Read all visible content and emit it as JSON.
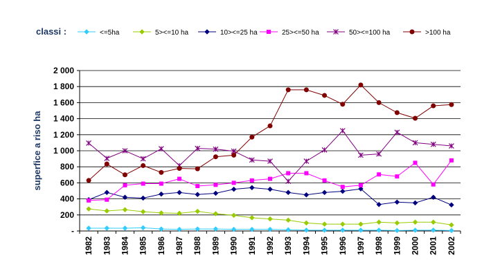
{
  "chart_data": {
    "type": "line",
    "legend_title": "classi :",
    "ylabel": "superfice a riso ha",
    "xlabel": "",
    "ylim": [
      0,
      2000
    ],
    "yticks": [
      {
        "value": 0,
        "label": "-"
      },
      {
        "value": 200,
        "label": "200"
      },
      {
        "value": 400,
        "label": "400"
      },
      {
        "value": 600,
        "label": "600"
      },
      {
        "value": 800,
        "label": "800"
      },
      {
        "value": 1000,
        "label": "1 000"
      },
      {
        "value": 1200,
        "label": "1 200"
      },
      {
        "value": 1400,
        "label": "1 400"
      },
      {
        "value": 1600,
        "label": "1 600"
      },
      {
        "value": 1800,
        "label": "1 800"
      },
      {
        "value": 2000,
        "label": "2 000"
      }
    ],
    "grid": "horizontal",
    "legend_position": "top",
    "categories": [
      "1982",
      "1983",
      "1984",
      "1985",
      "1986",
      "1987",
      "1988",
      "1989",
      "1990",
      "1991",
      "1992",
      "1993",
      "1994",
      "1995",
      "1996",
      "1997",
      "1998",
      "1999",
      "2000",
      "2001",
      "2002"
    ],
    "series": [
      {
        "name": "<=5ha",
        "color": "#33ccff",
        "marker": "diamond",
        "values": [
          35,
          35,
          35,
          40,
          25,
          20,
          25,
          25,
          20,
          20,
          20,
          15,
          10,
          10,
          10,
          10,
          10,
          5,
          10,
          10,
          5
        ]
      },
      {
        "name": "5><=10 ha",
        "color": "#99cc00",
        "marker": "diamond",
        "values": [
          275,
          250,
          265,
          240,
          225,
          220,
          245,
          215,
          195,
          165,
          150,
          135,
          100,
          85,
          85,
          85,
          110,
          100,
          110,
          110,
          75
        ]
      },
      {
        "name": "10><=25 ha",
        "color": "#000080",
        "marker": "diamond",
        "values": [
          390,
          480,
          420,
          410,
          460,
          480,
          455,
          470,
          520,
          540,
          520,
          480,
          450,
          480,
          495,
          525,
          330,
          360,
          350,
          420,
          325
        ]
      },
      {
        "name": "25><=50 ha",
        "color": "#ff00ff",
        "marker": "square",
        "values": [
          380,
          390,
          570,
          590,
          590,
          650,
          560,
          575,
          600,
          630,
          650,
          720,
          720,
          630,
          550,
          570,
          705,
          680,
          850,
          580,
          880
        ]
      },
      {
        "name": "50><=100 ha",
        "color": "#800080",
        "marker": "star",
        "values": [
          1095,
          905,
          1000,
          900,
          1025,
          815,
          1030,
          1020,
          995,
          885,
          870,
          620,
          870,
          1010,
          1250,
          945,
          960,
          1230,
          1100,
          1080,
          1060
        ]
      },
      {
        "name": ">100 ha",
        "color": "#800000",
        "marker": "circle",
        "values": [
          630,
          835,
          700,
          815,
          730,
          780,
          775,
          925,
          945,
          1170,
          1310,
          1760,
          1760,
          1690,
          1580,
          1820,
          1600,
          1475,
          1405,
          1560,
          1575
        ]
      }
    ]
  }
}
